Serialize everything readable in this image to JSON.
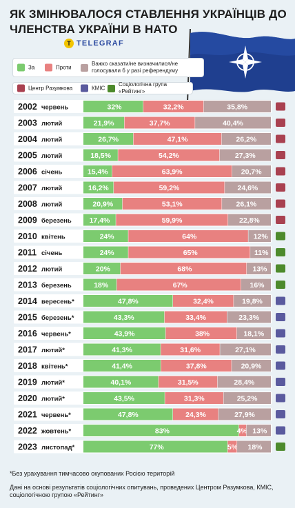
{
  "title": "ЯК ЗМІНЮВАЛОСЯ СТАВЛЕННЯ УКРАЇНЦІВ ДО ЧЛЕНСТВА УКРАЇНИ В НАТО",
  "logo": {
    "text": "TELEGRAF",
    "glyph": "T"
  },
  "legend": {
    "opinion": [
      {
        "label": "За",
        "color": "#7ccb6f"
      },
      {
        "label": "Проти",
        "color": "#e88180"
      },
      {
        "label": "Важко сказати/не визначилися/не голосували б у разі референдуму",
        "color": "#b9a0a0"
      }
    ],
    "pollsters": [
      {
        "label": "Центр Разумкова",
        "color": "#a94150"
      },
      {
        "label": "КМІС",
        "color": "#5a5a9e"
      },
      {
        "label": "Соціологічна група «Рейтинг»",
        "color": "#4d8a2c"
      }
    ]
  },
  "chart_data": {
    "type": "bar",
    "orientation": "horizontal",
    "stacked": true,
    "value_unit": "%",
    "series_names": [
      "За",
      "Проти",
      "Важко сказати/не визначилися/не голосували б у разі референдуму"
    ],
    "series_colors": [
      "#7ccb6f",
      "#e88180",
      "#b9a0a0"
    ],
    "pollster_colors": {
      "Центр Разумкова": "#a94150",
      "КМІС": "#5a5a9e",
      "Соціологічна група «Рейтинг»": "#4d8a2c"
    },
    "rows": [
      {
        "year": "2002",
        "month": "червень",
        "values": [
          32,
          32.2,
          35.8
        ],
        "labels": [
          "32%",
          "32,2%",
          "35,8%"
        ],
        "pollster": "Центр Разумкова"
      },
      {
        "year": "2003",
        "month": "лютий",
        "values": [
          21.9,
          37.7,
          40.4
        ],
        "labels": [
          "21,9%",
          "37,7%",
          "40,4%"
        ],
        "pollster": "Центр Разумкова"
      },
      {
        "year": "2004",
        "month": "лютий",
        "values": [
          26.7,
          47.1,
          26.2
        ],
        "labels": [
          "26,7%",
          "47,1%",
          "26,2%"
        ],
        "pollster": "Центр Разумкова"
      },
      {
        "year": "2005",
        "month": "лютий",
        "values": [
          18.5,
          54.2,
          27.3
        ],
        "labels": [
          "18,5%",
          "54,2%",
          "27,3%"
        ],
        "pollster": "Центр Разумкова"
      },
      {
        "year": "2006",
        "month": "січень",
        "values": [
          15.4,
          63.9,
          20.7
        ],
        "labels": [
          "15,4%",
          "63,9%",
          "20,7%"
        ],
        "pollster": "Центр Разумкова"
      },
      {
        "year": "2007",
        "month": "лютий",
        "values": [
          16.2,
          59.2,
          24.6
        ],
        "labels": [
          "16,2%",
          "59,2%",
          "24,6%"
        ],
        "pollster": "Центр Разумкова"
      },
      {
        "year": "2008",
        "month": "лютий",
        "values": [
          20.9,
          53.1,
          26.1
        ],
        "labels": [
          "20,9%",
          "53,1%",
          "26,1%"
        ],
        "pollster": "Центр Разумкова"
      },
      {
        "year": "2009",
        "month": "березень",
        "values": [
          17.4,
          59.9,
          22.8
        ],
        "labels": [
          "17,4%",
          "59,9%",
          "22,8%"
        ],
        "pollster": "Центр Разумкова"
      },
      {
        "year": "2010",
        "month": "квітень",
        "values": [
          24,
          64,
          12
        ],
        "labels": [
          "24%",
          "64%",
          "12%"
        ],
        "pollster": "Соціологічна група «Рейтинг»"
      },
      {
        "year": "2011",
        "month": "січень",
        "values": [
          24,
          65,
          11
        ],
        "labels": [
          "24%",
          "65%",
          "11%"
        ],
        "pollster": "Соціологічна група «Рейтинг»"
      },
      {
        "year": "2012",
        "month": "лютий",
        "values": [
          20,
          68,
          13
        ],
        "labels": [
          "20%",
          "68%",
          "13%"
        ],
        "pollster": "Соціологічна група «Рейтинг»"
      },
      {
        "year": "2013",
        "month": "березень",
        "values": [
          18,
          67,
          16
        ],
        "labels": [
          "18%",
          "67%",
          "16%"
        ],
        "pollster": "Соціологічна група «Рейтинг»"
      },
      {
        "year": "2014",
        "month": "вересень*",
        "values": [
          47.8,
          32.4,
          19.8
        ],
        "labels": [
          "47,8%",
          "32,4%",
          "19,8%"
        ],
        "pollster": "КМІС"
      },
      {
        "year": "2015",
        "month": "березень*",
        "values": [
          43.3,
          33.4,
          23.3
        ],
        "labels": [
          "43,3%",
          "33,4%",
          "23,3%"
        ],
        "pollster": "КМІС"
      },
      {
        "year": "2016",
        "month": "червень*",
        "values": [
          43.9,
          38,
          18.1
        ],
        "labels": [
          "43,9%",
          "38%",
          "18,1%"
        ],
        "pollster": "КМІС"
      },
      {
        "year": "2017",
        "month": "лютий*",
        "values": [
          41.3,
          31.6,
          27.1
        ],
        "labels": [
          "41,3%",
          "31,6%",
          "27,1%"
        ],
        "pollster": "КМІС"
      },
      {
        "year": "2018",
        "month": "квітень*",
        "values": [
          41.4,
          37.8,
          20.9
        ],
        "labels": [
          "41,4%",
          "37,8%",
          "20,9%"
        ],
        "pollster": "КМІС"
      },
      {
        "year": "2019",
        "month": "лютий*",
        "values": [
          40.1,
          31.5,
          28.4
        ],
        "labels": [
          "40,1%",
          "31,5%",
          "28,4%"
        ],
        "pollster": "КМІС"
      },
      {
        "year": "2020",
        "month": "лютий*",
        "values": [
          43.5,
          31.3,
          25.2
        ],
        "labels": [
          "43,5%",
          "31,3%",
          "25,2%"
        ],
        "pollster": "КМІС"
      },
      {
        "year": "2021",
        "month": "червень*",
        "values": [
          47.8,
          24.3,
          27.9
        ],
        "labels": [
          "47,8%",
          "24,3%",
          "27,9%"
        ],
        "pollster": "КМІС"
      },
      {
        "year": "2022",
        "month": "жовтень*",
        "values": [
          83,
          4,
          13
        ],
        "labels": [
          "83%",
          "4%",
          "13%"
        ],
        "pollster": "КМІС"
      },
      {
        "year": "2023",
        "month": "листопад*",
        "values": [
          77,
          5,
          18
        ],
        "labels": [
          "77%",
          "5%",
          "18%"
        ],
        "pollster": "Соціологічна група «Рейтинг»"
      }
    ]
  },
  "footnote": "*Без урахування тимчасово окупованих Росією територій",
  "source": "Дані на основі результатів соціологічних опитувань, проведених Центром Разумкова, КМІС, соціологічною групою «Рейтинг»"
}
